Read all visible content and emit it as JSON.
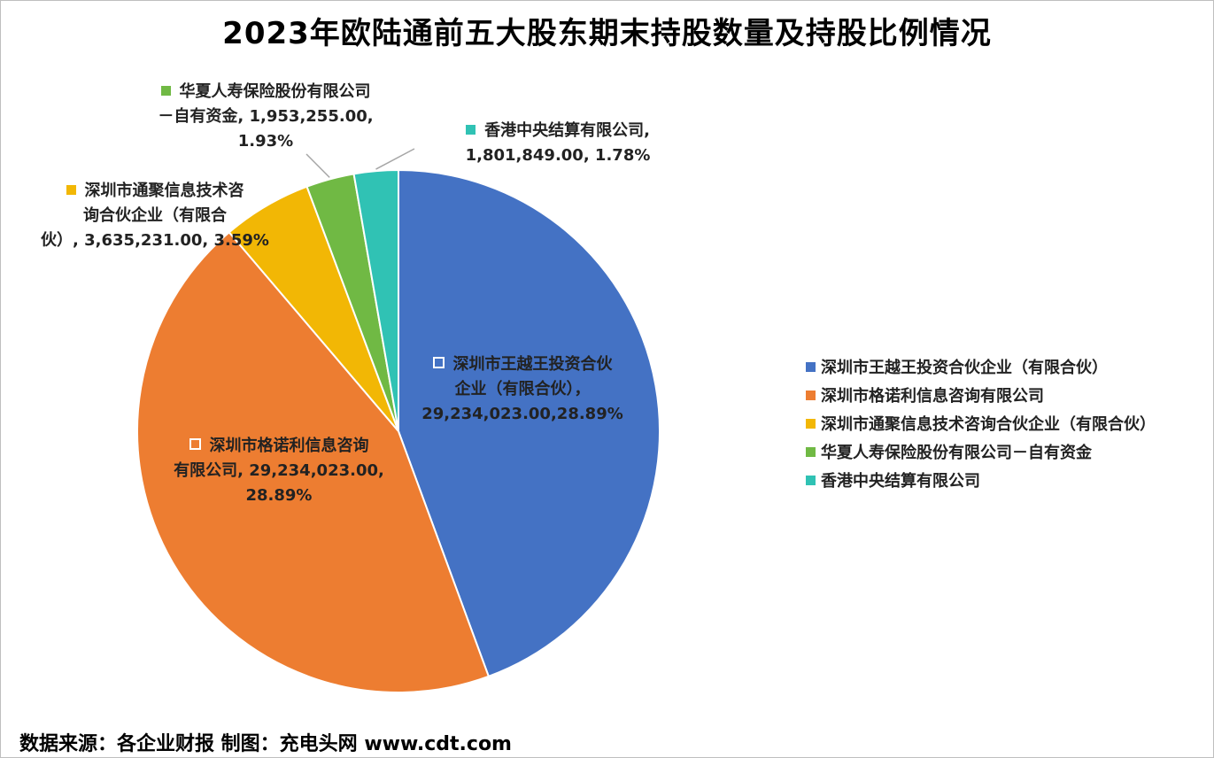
{
  "title": "2023年欧陆通前五大股东期末持股数量及持股比例情况",
  "source": "数据来源：各企业财报     制图：充电头网 www.cdt.com",
  "chart_data": {
    "type": "pie",
    "title": "2023年欧陆通前五大股东期末持股数量及持股比例情况",
    "legend_position": "right",
    "slices": [
      {
        "name": "深圳市王越王投资合伙企业（有限合伙）",
        "value": 29234023.0,
        "percent": 28.89,
        "color": "#4472C4",
        "label_lines": [
          "深圳市王越王投资合伙",
          "企业（有限合伙），",
          "29,234,023.00,28.89%"
        ]
      },
      {
        "name": "深圳市格诺利信息咨询有限公司",
        "value": 29234023.0,
        "percent": 28.89,
        "color": "#ED7D31",
        "label_lines": [
          "深圳市格诺利信息咨询",
          "有限公司, 29,234,023.00,",
          "28.89%"
        ]
      },
      {
        "name": "深圳市通聚信息技术咨询合伙企业（有限合伙）",
        "value": 3635231.0,
        "percent": 3.59,
        "color": "#F2B705",
        "label_lines": [
          "深圳市通聚信息技术咨",
          "询合伙企业（有限合",
          "伙）, 3,635,231.00, 3.59%"
        ]
      },
      {
        "name": "华夏人寿保险股份有限公司－自有资金",
        "value": 1953255.0,
        "percent": 1.93,
        "color": "#70B944",
        "label_lines": [
          "华夏人寿保险股份有限公司",
          "－自有资金, 1,953,255.00,",
          "1.93%"
        ]
      },
      {
        "name": "香港中央结算有限公司",
        "value": 1801849.0,
        "percent": 1.78,
        "color": "#30C2B4",
        "label_lines": [
          "香港中央结算有限公司,",
          "1,801,849.00, 1.78%"
        ]
      }
    ]
  }
}
